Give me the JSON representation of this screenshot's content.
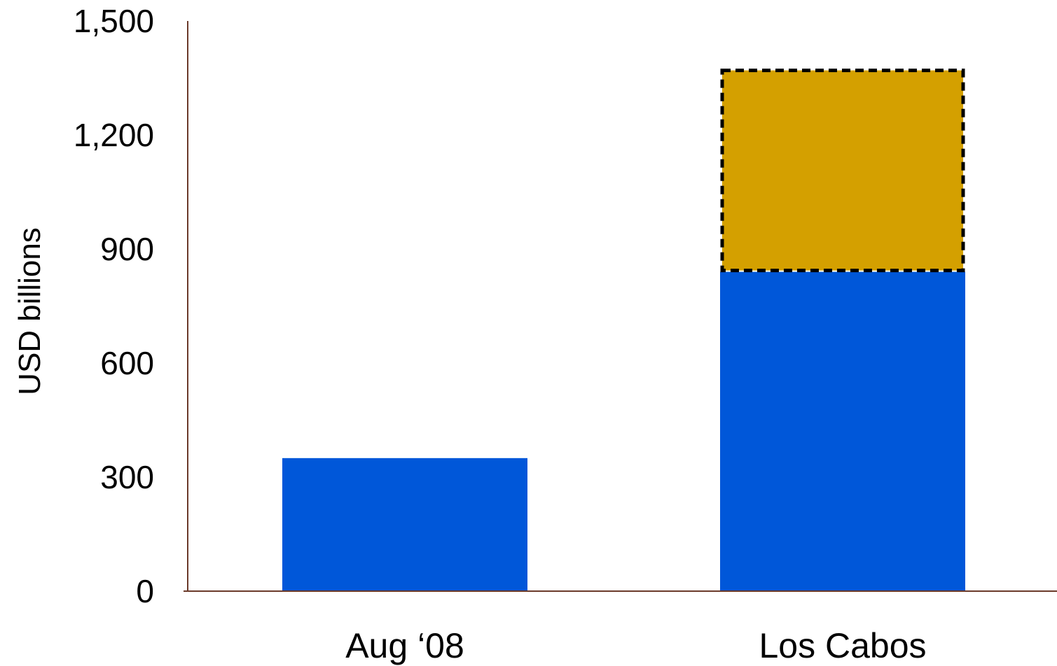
{
  "chart_data": {
    "type": "bar",
    "stacked": true,
    "title": "",
    "xlabel": "",
    "ylabel": "USD billions",
    "ylim": [
      0,
      1500
    ],
    "yticks": [
      0,
      300,
      600,
      900,
      1200,
      1500
    ],
    "ytick_labels": [
      "0",
      "300",
      "600",
      "900",
      "1,200",
      "1,500"
    ],
    "categories": [
      "Aug ‘08",
      "Los Cabos"
    ],
    "series": [
      {
        "values": [
          350,
          840
        ],
        "color": "#0057D9",
        "style": "solid"
      },
      {
        "values": [
          0,
          530
        ],
        "color": "#D4A000",
        "style": "dashed-outline"
      }
    ],
    "grid": false,
    "legend": "none",
    "axis_color": "#6B3A2A"
  }
}
